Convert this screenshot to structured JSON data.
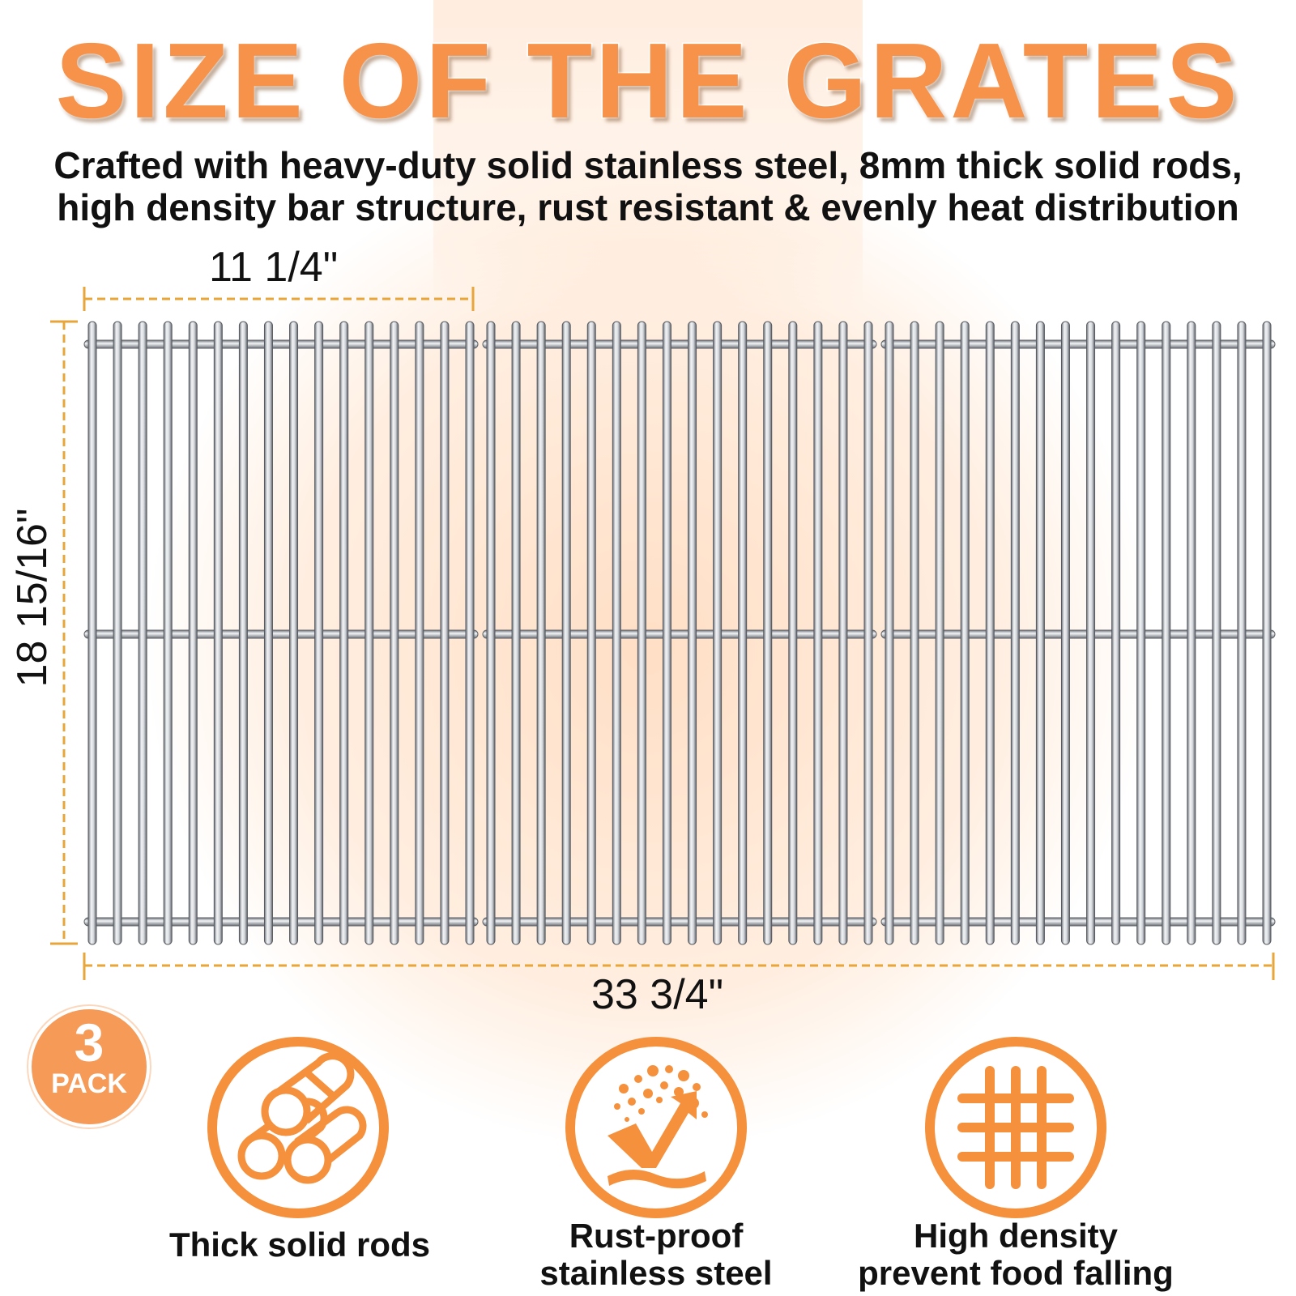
{
  "title": "SIZE OF THE GRATES",
  "subtitle": {
    "line1": "Crafted with heavy-duty solid stainless steel, 8mm thick solid rods,",
    "line2": "high density bar structure, rust resistant & evenly heat distribution"
  },
  "dimensions": {
    "width": "11 1/4\"",
    "height": "18 15/16\"",
    "total_width": "33 3/4\""
  },
  "pack": {
    "number": "3",
    "label": "PACK"
  },
  "grates": {
    "count": 3,
    "rods_per_grate": 16
  },
  "features": [
    {
      "icon": "rods-icon",
      "label": "Thick solid rods"
    },
    {
      "icon": "rust-proof-icon",
      "label_line1": "Rust-proof",
      "label_line2": "stainless steel"
    },
    {
      "icon": "grid-icon",
      "label_line1": "High density",
      "label_line2": "prevent food falling"
    }
  ],
  "colors": {
    "accent": "#f5913d",
    "title": "#f7924a",
    "dimension_line": "#e8a53a",
    "steel": "#c7cbd0"
  }
}
